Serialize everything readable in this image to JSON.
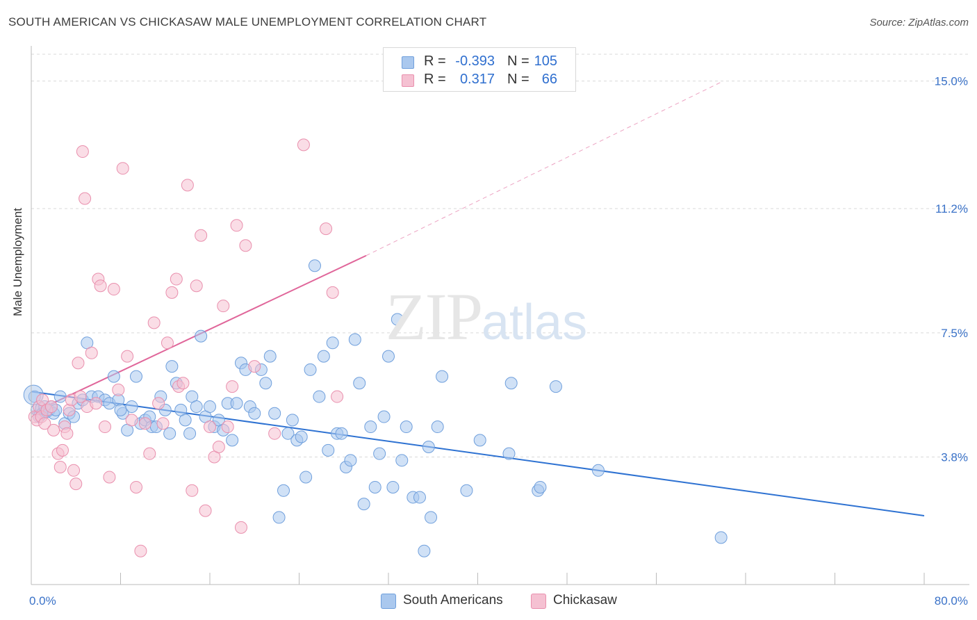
{
  "title": "SOUTH AMERICAN VS CHICKASAW MALE UNEMPLOYMENT CORRELATION CHART",
  "source": "Source: ZipAtlas.com",
  "watermark": {
    "zip": "ZIP",
    "atlas": "atlas"
  },
  "legend_top": {
    "rows": [
      {
        "r_label": "R =",
        "r_value": "-0.393",
        "n_label": "N =",
        "n_value": "105"
      },
      {
        "r_label": "R =",
        "r_value": "0.317",
        "n_label": "N =",
        "n_value": "66"
      }
    ]
  },
  "legend_bottom": {
    "south": "South Americans",
    "chick": "Chickasaw"
  },
  "colors": {
    "blue_fill": "#aac8ee",
    "blue_stroke": "#6f9fdc",
    "blue_line": "#2e72d2",
    "pink_fill": "#f5c1d2",
    "pink_stroke": "#e98fad",
    "pink_line": "#e0669a",
    "grid": "#d9d9d9",
    "tick_label": "#3a72c8"
  },
  "chart_data": {
    "type": "scatter",
    "title": "SOUTH AMERICAN VS CHICKASAW MALE UNEMPLOYMENT CORRELATION CHART",
    "xlabel": "",
    "ylabel": "Male Unemployment",
    "xlim": [
      0,
      80
    ],
    "ylim": [
      0,
      15.8
    ],
    "x_tick_labels": [
      "0.0%",
      "80.0%"
    ],
    "y_ticks": [
      3.8,
      7.5,
      11.2,
      15.0
    ],
    "y_tick_labels": [
      "3.8%",
      "7.5%",
      "11.2%",
      "15.0%"
    ],
    "grid": true,
    "legend_placement": "top-center",
    "series": [
      {
        "name": "South Americans",
        "r": -0.393,
        "n": 105,
        "trend": {
          "x": [
            0,
            80
          ],
          "y": [
            5.75,
            2.05
          ],
          "dashed_to": null
        },
        "points": [
          [
            0.3,
            5.6
          ],
          [
            0.5,
            5.2
          ],
          [
            0.7,
            5.0
          ],
          [
            0.9,
            5.25
          ],
          [
            1.0,
            5.1
          ],
          [
            1.2,
            5.3
          ],
          [
            1.4,
            5.15
          ],
          [
            1.6,
            5.2
          ],
          [
            1.8,
            5.3
          ],
          [
            2.0,
            5.1
          ],
          [
            2.2,
            5.2
          ],
          [
            2.6,
            5.6
          ],
          [
            3.0,
            4.8
          ],
          [
            3.4,
            5.1
          ],
          [
            3.8,
            5.0
          ],
          [
            4.2,
            5.4
          ],
          [
            4.6,
            5.5
          ],
          [
            5.0,
            7.2
          ],
          [
            5.4,
            5.6
          ],
          [
            6.0,
            5.6
          ],
          [
            6.6,
            5.5
          ],
          [
            7.0,
            5.4
          ],
          [
            7.4,
            6.2
          ],
          [
            7.8,
            5.5
          ],
          [
            8.2,
            5.1
          ],
          [
            8.6,
            4.6
          ],
          [
            8.0,
            5.2
          ],
          [
            9.0,
            5.3
          ],
          [
            9.4,
            6.2
          ],
          [
            9.8,
            4.8
          ],
          [
            10.2,
            4.9
          ],
          [
            10.6,
            5.0
          ],
          [
            10.8,
            4.7
          ],
          [
            11.2,
            4.7
          ],
          [
            11.6,
            5.6
          ],
          [
            12.0,
            5.2
          ],
          [
            12.4,
            4.5
          ],
          [
            12.6,
            6.5
          ],
          [
            13.0,
            6.0
          ],
          [
            13.4,
            5.2
          ],
          [
            13.8,
            4.9
          ],
          [
            14.2,
            4.5
          ],
          [
            14.4,
            5.6
          ],
          [
            14.8,
            5.3
          ],
          [
            15.2,
            7.4
          ],
          [
            15.6,
            5.0
          ],
          [
            16.0,
            5.3
          ],
          [
            16.4,
            4.7
          ],
          [
            16.8,
            4.9
          ],
          [
            17.2,
            4.6
          ],
          [
            17.6,
            5.4
          ],
          [
            18.0,
            4.3
          ],
          [
            18.4,
            5.4
          ],
          [
            18.8,
            6.6
          ],
          [
            19.2,
            6.4
          ],
          [
            19.6,
            5.3
          ],
          [
            20.0,
            5.1
          ],
          [
            20.6,
            6.4
          ],
          [
            21.0,
            6.0
          ],
          [
            21.4,
            6.8
          ],
          [
            21.8,
            5.1
          ],
          [
            22.2,
            2.0
          ],
          [
            22.6,
            2.8
          ],
          [
            23.0,
            4.5
          ],
          [
            23.4,
            4.9
          ],
          [
            23.8,
            4.3
          ],
          [
            24.2,
            4.4
          ],
          [
            24.6,
            3.2
          ],
          [
            25.0,
            6.4
          ],
          [
            25.4,
            9.5
          ],
          [
            25.8,
            5.6
          ],
          [
            26.2,
            6.8
          ],
          [
            26.6,
            4.0
          ],
          [
            27.0,
            7.2
          ],
          [
            27.4,
            4.5
          ],
          [
            27.8,
            4.5
          ],
          [
            28.2,
            3.5
          ],
          [
            28.6,
            3.7
          ],
          [
            29.0,
            7.3
          ],
          [
            29.4,
            6.0
          ],
          [
            29.8,
            2.4
          ],
          [
            30.4,
            4.7
          ],
          [
            30.8,
            2.9
          ],
          [
            31.2,
            3.9
          ],
          [
            31.6,
            5.0
          ],
          [
            32.0,
            6.8
          ],
          [
            32.4,
            2.9
          ],
          [
            32.8,
            7.9
          ],
          [
            33.2,
            3.7
          ],
          [
            33.6,
            4.7
          ],
          [
            34.2,
            2.6
          ],
          [
            34.8,
            2.6
          ],
          [
            35.2,
            1.0
          ],
          [
            35.6,
            4.1
          ],
          [
            35.8,
            2.0
          ],
          [
            36.4,
            4.7
          ],
          [
            36.8,
            6.2
          ],
          [
            39.0,
            2.8
          ],
          [
            40.2,
            4.3
          ],
          [
            42.8,
            3.9
          ],
          [
            43.0,
            6.0
          ],
          [
            45.4,
            2.8
          ],
          [
            45.6,
            2.9
          ],
          [
            47.0,
            5.9
          ],
          [
            50.8,
            3.4
          ],
          [
            61.8,
            1.4
          ]
        ]
      },
      {
        "name": "Chickasaw",
        "r": 0.317,
        "n": 66,
        "trend": {
          "x": [
            0,
            30
          ],
          "y": [
            5.1,
            9.8
          ],
          "dashed_to": [
            62,
            15.0
          ]
        },
        "points": [
          [
            0.3,
            5.0
          ],
          [
            0.5,
            4.9
          ],
          [
            0.7,
            5.3
          ],
          [
            0.9,
            5.0
          ],
          [
            1.0,
            5.5
          ],
          [
            1.2,
            4.8
          ],
          [
            1.4,
            5.2
          ],
          [
            1.8,
            5.3
          ],
          [
            2.0,
            4.6
          ],
          [
            2.4,
            3.9
          ],
          [
            2.6,
            3.5
          ],
          [
            2.8,
            4.0
          ],
          [
            3.0,
            4.7
          ],
          [
            3.2,
            4.5
          ],
          [
            3.4,
            5.2
          ],
          [
            3.6,
            5.5
          ],
          [
            3.8,
            3.4
          ],
          [
            4.0,
            3.0
          ],
          [
            4.2,
            6.6
          ],
          [
            4.4,
            5.6
          ],
          [
            4.6,
            12.9
          ],
          [
            4.8,
            11.5
          ],
          [
            5.0,
            5.3
          ],
          [
            5.4,
            6.9
          ],
          [
            5.8,
            5.4
          ],
          [
            6.0,
            9.1
          ],
          [
            6.2,
            8.9
          ],
          [
            6.6,
            4.7
          ],
          [
            7.0,
            3.2
          ],
          [
            7.4,
            8.8
          ],
          [
            7.8,
            5.8
          ],
          [
            8.2,
            12.4
          ],
          [
            8.6,
            6.8
          ],
          [
            9.0,
            4.9
          ],
          [
            9.4,
            2.9
          ],
          [
            9.8,
            1.0
          ],
          [
            10.2,
            4.8
          ],
          [
            10.6,
            3.9
          ],
          [
            11.0,
            7.8
          ],
          [
            11.4,
            5.4
          ],
          [
            11.8,
            4.8
          ],
          [
            12.2,
            7.2
          ],
          [
            12.6,
            8.7
          ],
          [
            13.0,
            9.1
          ],
          [
            13.2,
            5.9
          ],
          [
            13.6,
            6.0
          ],
          [
            14.0,
            11.9
          ],
          [
            14.4,
            2.8
          ],
          [
            14.8,
            8.9
          ],
          [
            15.2,
            10.4
          ],
          [
            15.6,
            2.2
          ],
          [
            16.0,
            4.7
          ],
          [
            16.4,
            3.8
          ],
          [
            16.8,
            4.1
          ],
          [
            17.2,
            8.3
          ],
          [
            17.6,
            4.7
          ],
          [
            18.0,
            5.9
          ],
          [
            18.4,
            10.7
          ],
          [
            18.8,
            1.7
          ],
          [
            19.2,
            10.1
          ],
          [
            20.0,
            6.5
          ],
          [
            21.8,
            4.5
          ],
          [
            24.4,
            13.1
          ],
          [
            26.4,
            10.6
          ],
          [
            27.0,
            8.7
          ],
          [
            27.4,
            5.6
          ]
        ]
      }
    ]
  }
}
